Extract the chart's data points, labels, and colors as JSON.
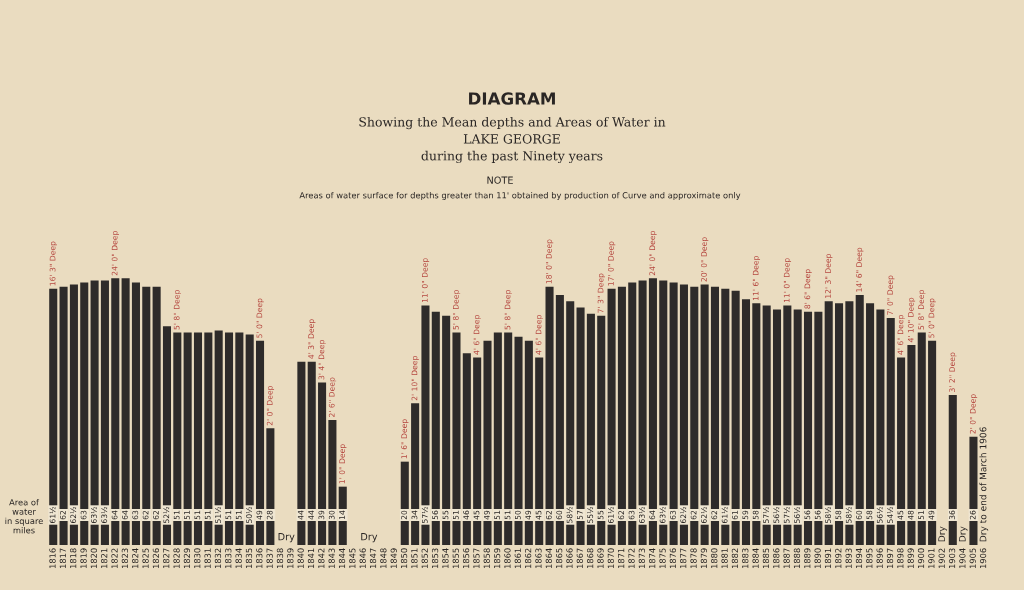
{
  "chart_data": {
    "type": "bar",
    "title": "DIAGRAM",
    "subtitle": "Showing the Mean depths and Areas of Water in\nLAKE GEORGE\nduring the past Ninety years",
    "categories": [
      "1816",
      "1817",
      "1818",
      "1819",
      "1820",
      "1821",
      "1822",
      "1823",
      "1824",
      "1825",
      "1826",
      "1827",
      "1828",
      "1829",
      "1830",
      "1831",
      "1832",
      "1833",
      "1834",
      "1835",
      "1836",
      "1837",
      "1838",
      "1839",
      "1840",
      "1841",
      "1842",
      "1843",
      "1844",
      "1845",
      "1846",
      "1847",
      "1848",
      "1849",
      "1850",
      "1851",
      "1852",
      "1853",
      "1854",
      "1855",
      "1856",
      "1857",
      "1858",
      "1859",
      "1860",
      "1861",
      "1862",
      "1863",
      "1864",
      "1865",
      "1866",
      "1867",
      "1868",
      "1869",
      "1870",
      "1871",
      "1872",
      "1873",
      "1874",
      "1875",
      "1876",
      "1877",
      "1878",
      "1879",
      "1880",
      "1881",
      "1882",
      "1883",
      "1884",
      "1885",
      "1886",
      "1887",
      "1888",
      "1889",
      "1890",
      "1891",
      "1892",
      "1893",
      "1894",
      "1895",
      "1896",
      "1897",
      "1898",
      "1899",
      "1900",
      "1901",
      "1902",
      "1903",
      "1904",
      "1905",
      "1906"
    ],
    "values": [
      61.5,
      62,
      62.5,
      63,
      63.5,
      63.5,
      64,
      64,
      63,
      62,
      62,
      52.5,
      51,
      51,
      51,
      51,
      51.5,
      51,
      51,
      50.5,
      49,
      28,
      null,
      null,
      44,
      44,
      39,
      30,
      14,
      null,
      null,
      null,
      null,
      null,
      20,
      34,
      57.5,
      56,
      55,
      51,
      46,
      45,
      49,
      51,
      51,
      50,
      49,
      45,
      62,
      60,
      58.5,
      57,
      55.5,
      55,
      61.5,
      62,
      63,
      63.5,
      64,
      63.5,
      63,
      62.5,
      62,
      62.5,
      62,
      61.5,
      61,
      59,
      58,
      57.5,
      56.5,
      57.5,
      56.5,
      56,
      56,
      58.5,
      58,
      58.5,
      60,
      58,
      56.5,
      54.5,
      45,
      48,
      51,
      49,
      null,
      36,
      null,
      26,
      null
    ],
    "value_labels": [
      "61½",
      "62",
      "62½",
      "63",
      "63½",
      "63½",
      "64",
      "64",
      "63",
      "62",
      "62",
      "52½",
      "51",
      "51",
      "51",
      "51",
      "51½",
      "51",
      "51",
      "50½",
      "49",
      "28",
      null,
      null,
      "44",
      "44",
      "39",
      "30",
      "14",
      null,
      null,
      null,
      null,
      null,
      "20",
      "34",
      "57½",
      "56",
      "55",
      "51",
      "46",
      "45",
      "49",
      "51",
      "51",
      "50",
      "49",
      "45",
      "62",
      "60",
      "58½",
      "57",
      "55½",
      "55",
      "61½",
      "62",
      "63",
      "63½",
      "64",
      "63½",
      "63",
      "62½",
      "62",
      "62½",
      "62",
      "61½",
      "61",
      "59",
      "58",
      "57½",
      "56½",
      "57½",
      "56½",
      "56",
      "56",
      "58½",
      "58",
      "58½",
      "60",
      "58",
      "56½",
      "54½",
      "45",
      "48",
      "51",
      "49",
      null,
      "36",
      null,
      "26",
      null
    ],
    "color": "#2e2b2a",
    "tick_labels": "x",
    "annotations": [
      "Area of water\nin square\nmiles",
      "NOTE",
      "Areas of water surface for depths greater than 11' obtained by production of Curve and approximate only",
      {
        "text": "16' 3\" Deep",
        "x": "1816",
        "y": 61.5
      },
      {
        "text": "24' 0\" Deep",
        "x": "1822",
        "y": 64
      },
      {
        "text": "5' 8\" Deep",
        "x": "1828",
        "y": 51
      },
      {
        "text": "5' 0\" Deep",
        "x": "1836",
        "y": 49
      },
      {
        "text": "2' 0\" Deep",
        "x": "1837",
        "y": 28
      },
      {
        "text": "4' 3\" Deep",
        "x": "1841",
        "y": 44
      },
      {
        "text": "3' 4\" Deep",
        "x": "1842",
        "y": 39
      },
      {
        "text": "2' 6\" Deep",
        "x": "1843",
        "y": 30
      },
      {
        "text": "1' 0\" Deep",
        "x": "1844",
        "y": 14
      },
      {
        "text": "1' 6\" Deep",
        "x": "1850",
        "y": 20
      },
      {
        "text": "2' 10\" Deep",
        "x": "1851",
        "y": 34
      },
      {
        "text": "11' 0\" Deep",
        "x": "1852",
        "y": 57.5
      },
      {
        "text": "5' 8\" Deep",
        "x": "1855",
        "y": 51
      },
      {
        "text": "4' 6\" Deep",
        "x": "1857",
        "y": 45
      },
      {
        "text": "5' 8\" Deep",
        "x": "1860",
        "y": 51
      },
      {
        "text": "4' 6\" Deep",
        "x": "1863",
        "y": 45
      },
      {
        "text": "18' 0\" Deep",
        "x": "1864",
        "y": 62
      },
      {
        "text": "7' 3\" Deep",
        "x": "1869",
        "y": 55
      },
      {
        "text": "17' 0\" Deep",
        "x": "1870",
        "y": 61.5
      },
      {
        "text": "24' 0\" Deep",
        "x": "1874",
        "y": 64
      },
      {
        "text": "20' 0\" Deep",
        "x": "1879",
        "y": 62.5
      },
      {
        "text": "11' 6\" Deep",
        "x": "1884",
        "y": 58
      },
      {
        "text": "11' 0\" Deep",
        "x": "1887",
        "y": 57.5
      },
      {
        "text": "8' 6\" Deep",
        "x": "1889",
        "y": 56
      },
      {
        "text": "12' 3\" Deep",
        "x": "1891",
        "y": 58.5
      },
      {
        "text": "14' 6\" Deep",
        "x": "1894",
        "y": 60
      },
      {
        "text": "7' 0\" Deep",
        "x": "1897",
        "y": 54.5
      },
      {
        "text": "4' 6\" Deep",
        "x": "1898",
        "y": 45
      },
      {
        "text": "4' 10\" Deep",
        "x": "1899",
        "y": 48
      },
      {
        "text": "5' 8\" Deep",
        "x": "1900",
        "y": 51
      },
      {
        "text": "5' 0\" Deep",
        "x": "1901",
        "y": 49
      },
      {
        "text": "3' 2\" Deep",
        "x": "1903",
        "y": 36
      },
      {
        "text": "2' 0\" Deep",
        "x": "1905",
        "y": 26
      },
      "Dry",
      "Dry",
      "Dry",
      "Dry",
      "Dry to end of March 1906"
    ]
  }
}
